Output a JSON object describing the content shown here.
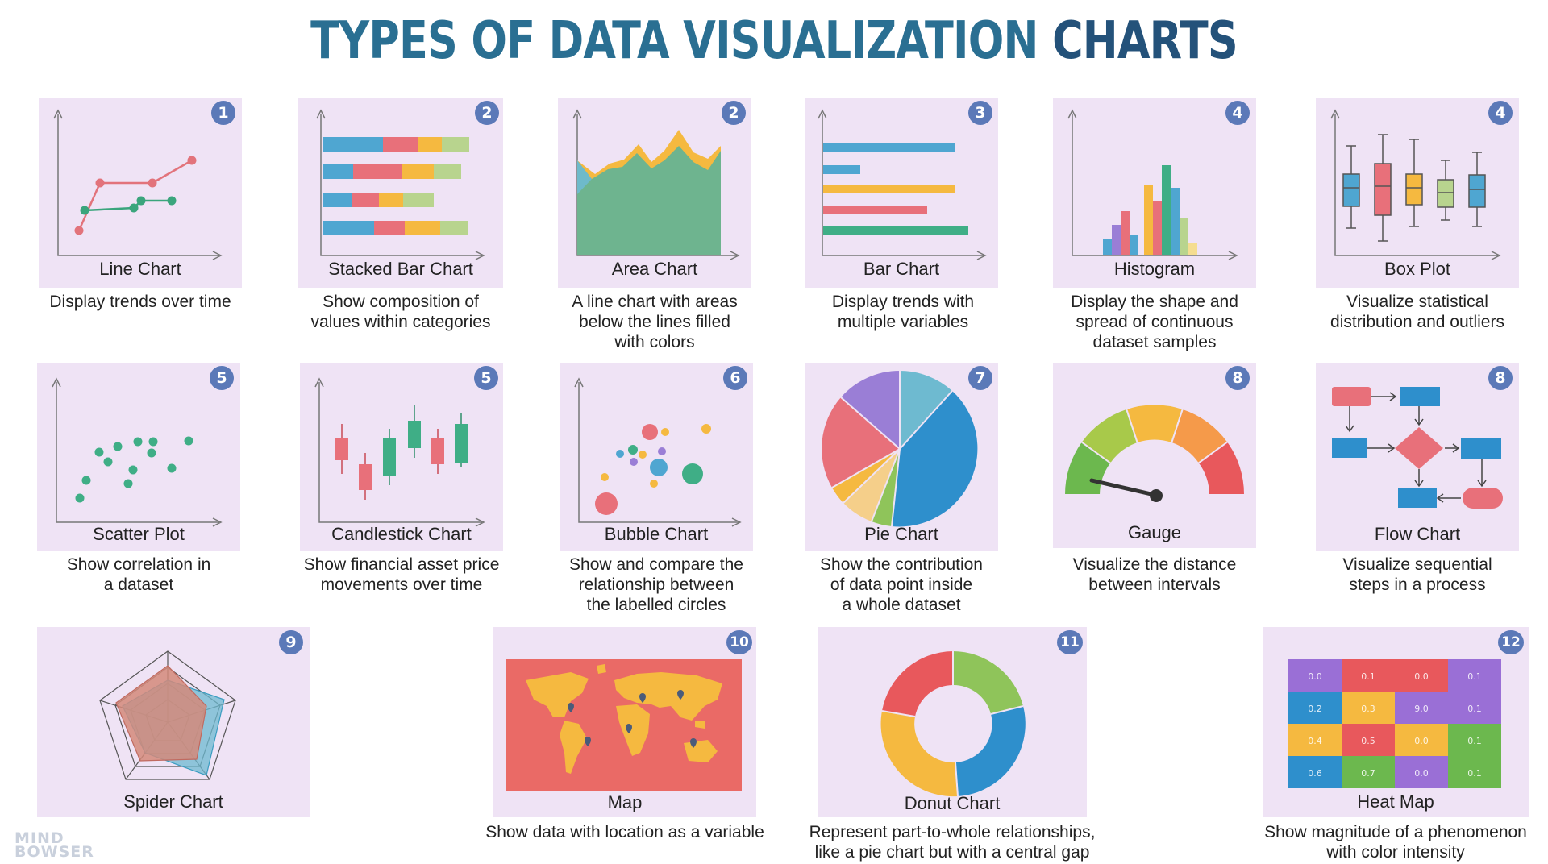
{
  "title": {
    "part1": "TYPES OF DATA VISUALIZATION",
    "part2": "CHARTS"
  },
  "cards": [
    {
      "label": "Line Chart",
      "badge": "1",
      "desc": [
        "Display trends over time"
      ]
    },
    {
      "label": "Stacked Bar Chart",
      "badge": "2",
      "desc": [
        "Show composition of",
        "values within categories"
      ]
    },
    {
      "label": "Area Chart",
      "badge": "2",
      "desc": [
        "A line chart with areas",
        "below the lines filled",
        "with colors"
      ]
    },
    {
      "label": "Bar Chart",
      "badge": "3",
      "desc": [
        "Display trends with",
        "multiple variables"
      ]
    },
    {
      "label": "Histogram",
      "badge": "4",
      "desc": [
        "Display the shape and",
        "spread of continuous",
        "dataset samples"
      ]
    },
    {
      "label": "Box Plot",
      "badge": "4",
      "desc": [
        "Visualize statistical",
        "distribution and outliers"
      ]
    },
    {
      "label": "Scatter Plot",
      "badge": "5",
      "desc": [
        "Show correlation in",
        "a dataset"
      ]
    },
    {
      "label": "Candlestick Chart",
      "badge": "5",
      "desc": [
        "Show financial asset price",
        "movements over time"
      ]
    },
    {
      "label": "Bubble Chart",
      "badge": "6",
      "desc": [
        "Show and compare the",
        "relationship between",
        "the labelled circles"
      ]
    },
    {
      "label": "Pie Chart",
      "badge": "7",
      "desc": [
        "Show the contribution",
        "of data point inside",
        "a whole dataset"
      ]
    },
    {
      "label": "Gauge",
      "badge": "8",
      "desc": [
        "Visualize the distance",
        "between intervals"
      ]
    },
    {
      "label": "Flow Chart",
      "badge": "8",
      "desc": [
        "Visualize sequential",
        "steps in a process"
      ]
    },
    {
      "label": "Spider Chart",
      "badge": "9",
      "desc": []
    },
    {
      "label": "Map",
      "badge": "10",
      "desc": [
        "Show data with location as a variable"
      ]
    },
    {
      "label": "Donut Chart",
      "badge": "11",
      "desc": [
        "Represent part-to-whole relationships,",
        "like a pie chart but with a central gap"
      ]
    },
    {
      "label": "Heat Map",
      "badge": "12",
      "desc": [
        "Show magnitude of a phenomenon",
        "with color intensity"
      ]
    }
  ],
  "heatmap_values": [
    [
      "0.0",
      "0.1",
      "0.0",
      "0.1"
    ],
    [
      "0.2",
      "0.3",
      "9.0",
      "0.1"
    ],
    [
      "0.4",
      "0.5",
      "0.0",
      "0.1"
    ],
    [
      "0.6",
      "0.7",
      "0.0",
      "0.1"
    ]
  ],
  "logo": {
    "line1": "MIND",
    "line2": "BOWSER"
  },
  "colors": {
    "title": "#2a6f92",
    "badge": "#5b79b8",
    "card": "#efe3f5"
  }
}
